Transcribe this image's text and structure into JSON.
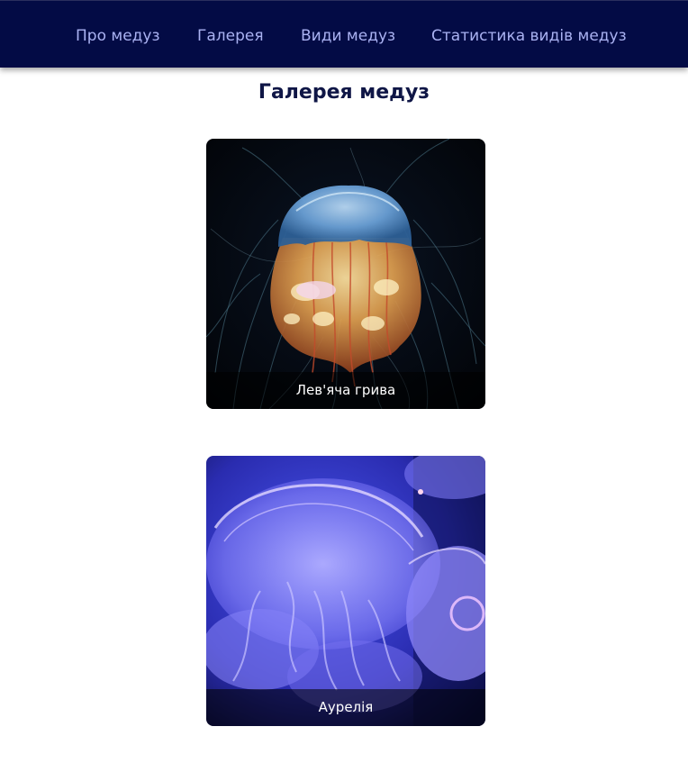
{
  "nav": {
    "items": [
      {
        "label": "Про медуз"
      },
      {
        "label": "Галерея"
      },
      {
        "label": "Види медуз"
      },
      {
        "label": "Статистика видів медуз"
      }
    ]
  },
  "main": {
    "title": "Галерея медуз",
    "gallery": [
      {
        "caption": "Лев'яча грива"
      },
      {
        "caption": "Аурелія"
      }
    ]
  },
  "colors": {
    "nav_bg": "#030b45",
    "nav_link": "#aab2f2",
    "title": "#0f1646"
  }
}
